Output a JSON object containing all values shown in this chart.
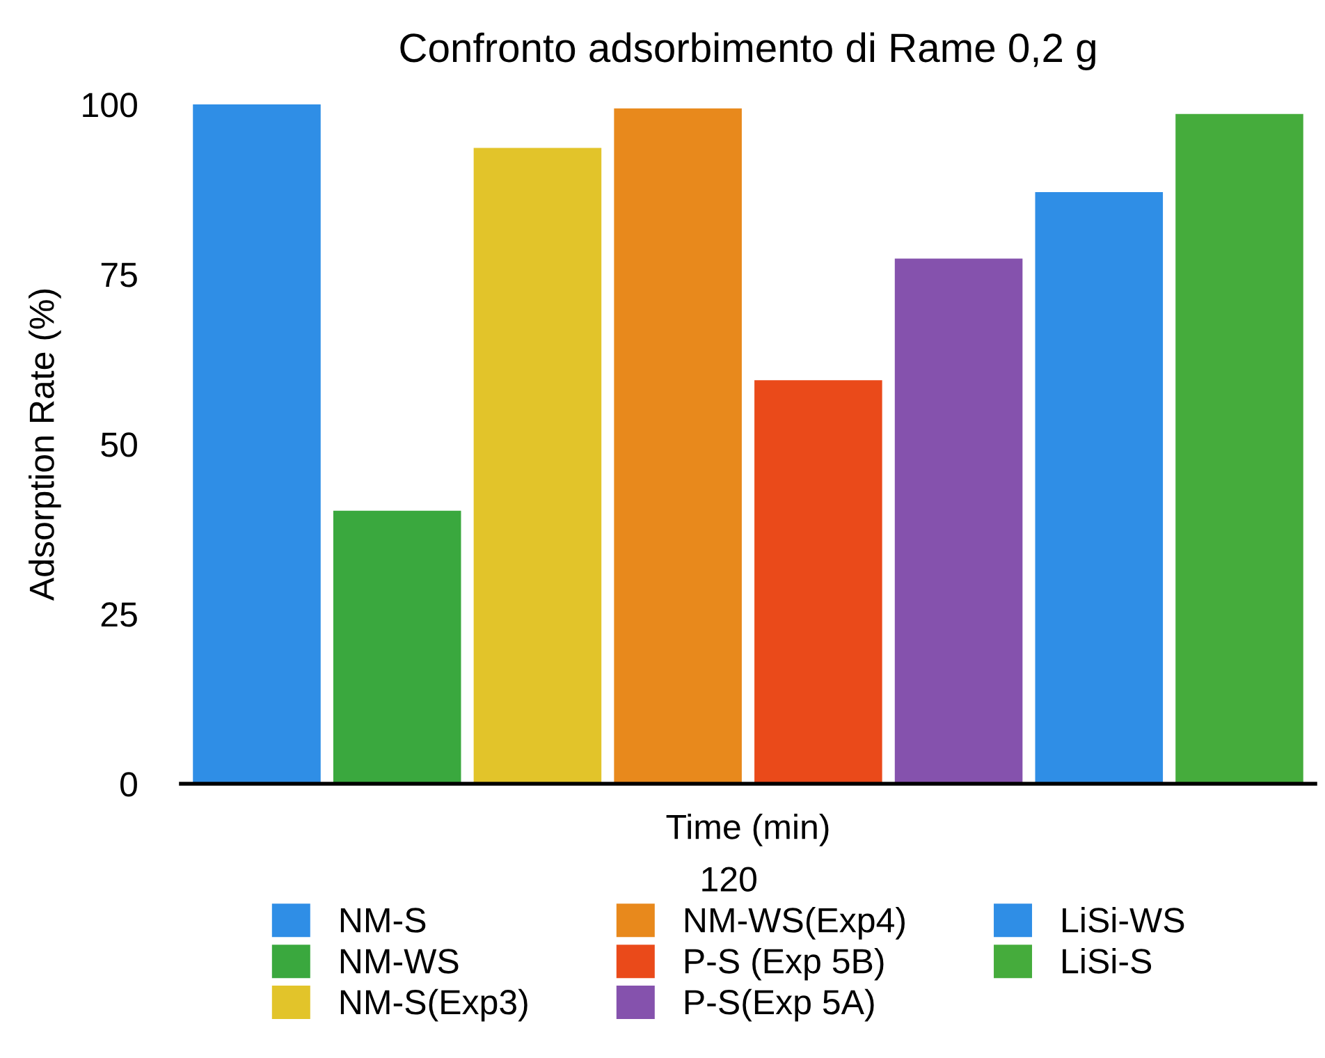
{
  "chart_data": {
    "type": "bar",
    "title": "Confronto adsorbimento di Rame 0,2 g",
    "xlabel": "Time (min)",
    "ylabel": "Adsorption Rate (%)",
    "legend_title": "120",
    "categories": [
      null
    ],
    "series": [
      {
        "name": "NM-S",
        "color": "#2f8ee6",
        "values": [
          100
        ]
      },
      {
        "name": "NM-WS",
        "color": "#3aa83e",
        "values": [
          40.2
        ]
      },
      {
        "name": "NM-S(Exp3)",
        "color": "#e2c42a",
        "values": [
          93.6
        ]
      },
      {
        "name": "NM-WS(Exp4)",
        "color": "#e8891c",
        "values": [
          99.4
        ]
      },
      {
        "name": "P-S (Exp 5B)",
        "color": "#ea4a1a",
        "values": [
          59.4
        ]
      },
      {
        "name": "P-S(Exp 5A)",
        "color": "#8552ad",
        "values": [
          77.3
        ]
      },
      {
        "name": "LiSi-WS",
        "color": "#2f8ee6",
        "values": [
          87.1
        ]
      },
      {
        "name": "LiSi-S",
        "color": "#45ac3c",
        "values": [
          98.6
        ]
      }
    ],
    "ylim": [
      0,
      100
    ],
    "yticks": [
      0,
      25,
      50,
      75,
      100
    ],
    "grid": false,
    "legend": "bottom"
  }
}
